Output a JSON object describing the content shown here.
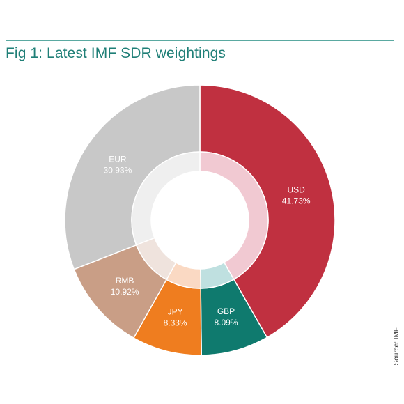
{
  "title": "Fig 1: Latest IMF SDR weightings",
  "source": "Source: IMF",
  "colors": {
    "rule": "#5aa9a1",
    "title": "#1f7f77"
  },
  "chart_data": {
    "type": "pie",
    "title": "Fig 1: Latest IMF SDR weightings",
    "donut": true,
    "start_angle_deg": 0,
    "direction": "clockwise",
    "slices": [
      {
        "label": "USD",
        "value": 41.73,
        "display": "41.73%",
        "color": "#c03040",
        "inner_color": "#f1c9d2",
        "text_color": "#ffffff"
      },
      {
        "label": "GBP",
        "value": 8.09,
        "display": "8.09%",
        "color": "#0f7a6e",
        "inner_color": "#bfe0e0",
        "text_color": "#ffffff"
      },
      {
        "label": "JPY",
        "value": 8.33,
        "display": "8.33%",
        "color": "#ef7d1f",
        "inner_color": "#fad9c3",
        "text_color": "#ffffff"
      },
      {
        "label": "RMB",
        "value": 10.92,
        "display": "10.92%",
        "color": "#c99e86",
        "inner_color": "#efe3dd",
        "text_color": "#ffffff"
      },
      {
        "label": "EUR",
        "value": 30.93,
        "display": "30.93%",
        "color": "#c8c8c8",
        "inner_color": "#efefef",
        "text_color": "#ffffff"
      }
    ]
  }
}
